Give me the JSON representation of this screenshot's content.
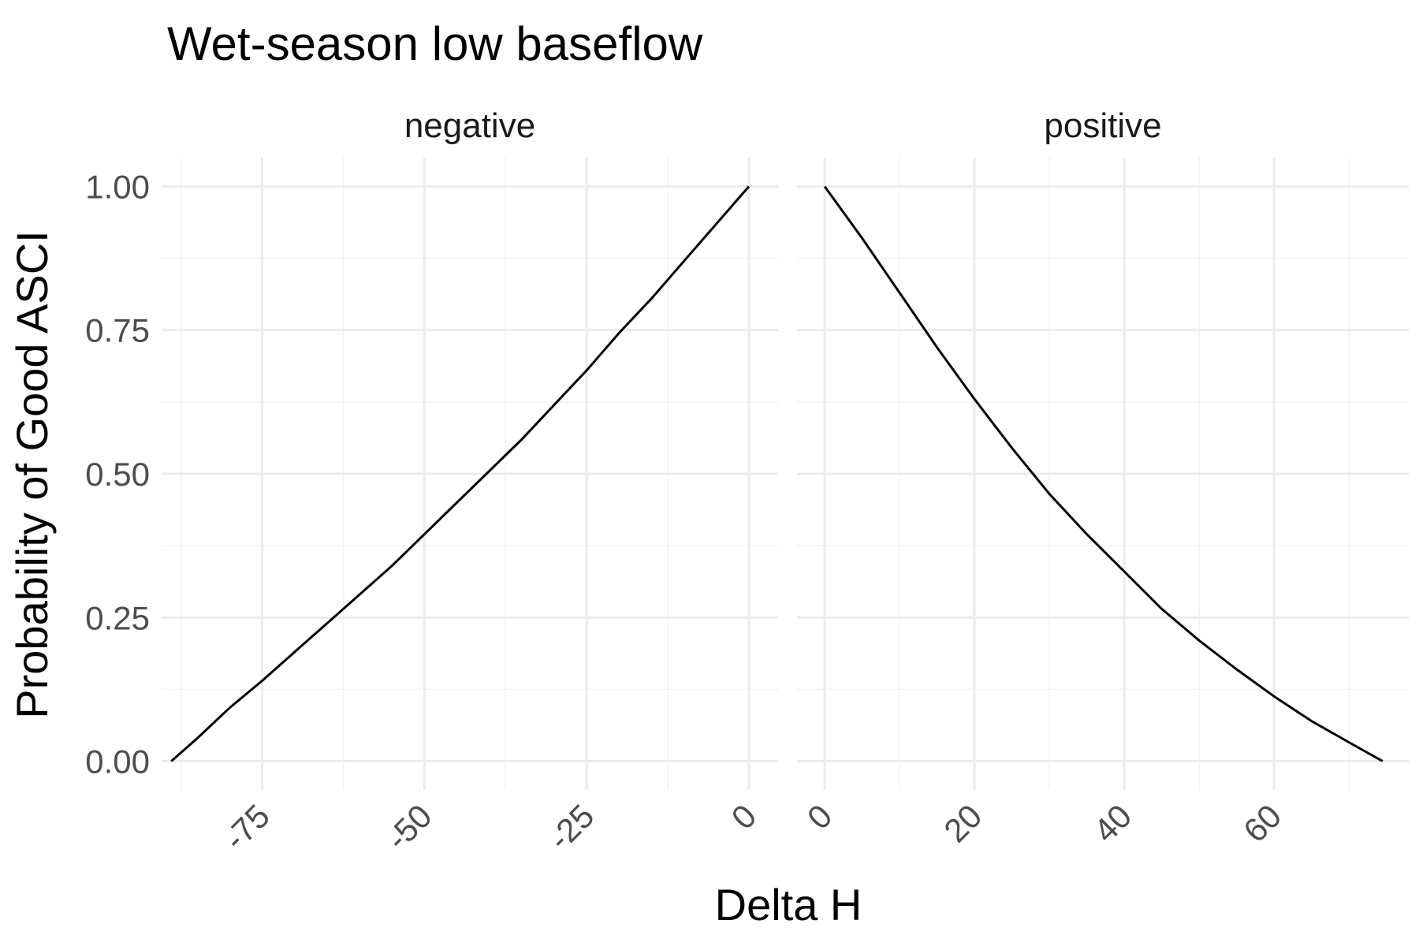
{
  "chart_data": {
    "type": "line",
    "title": "Wet-season low baseflow",
    "xlabel": "Delta H",
    "ylabel": "Probability of Good ASCI",
    "ylim": [
      0,
      1
    ],
    "y_ticks": [
      "0.00",
      "0.25",
      "0.50",
      "0.75",
      "1.00"
    ],
    "y_tick_values": [
      0,
      0.25,
      0.5,
      0.75,
      1.0
    ],
    "grid": true,
    "facets": [
      {
        "label": "negative",
        "xlim": [
          -90.5,
          4.5
        ],
        "x_ticks": [
          "-75",
          "-50",
          "-25",
          "0"
        ],
        "x_tick_values": [
          -75,
          -50,
          -25,
          0
        ],
        "x": [
          -89.0,
          -85.0,
          -80.0,
          -75.0,
          -70.0,
          -65.0,
          -60.0,
          -55.0,
          -50.0,
          -45.0,
          -40.0,
          -35.0,
          -30.0,
          -25.0,
          -20.0,
          -15.0,
          -10.0,
          -5.0,
          0.0
        ],
        "y": [
          0.0,
          0.04,
          0.093,
          0.14,
          0.19,
          0.24,
          0.29,
          0.34,
          0.395,
          0.45,
          0.505,
          0.56,
          0.62,
          0.68,
          0.745,
          0.805,
          0.87,
          0.935,
          1.0
        ]
      },
      {
        "label": "positive",
        "xlim": [
          -3.7,
          78.0
        ],
        "x_ticks": [
          "0",
          "20",
          "40",
          "60"
        ],
        "x_tick_values": [
          0,
          20,
          40,
          60
        ],
        "x": [
          0.0,
          5.0,
          10.0,
          15.0,
          20.0,
          25.0,
          30.0,
          35.0,
          40.0,
          45.0,
          50.0,
          55.0,
          60.0,
          65.0,
          70.0,
          74.5
        ],
        "y": [
          1.0,
          0.91,
          0.815,
          0.72,
          0.63,
          0.545,
          0.465,
          0.395,
          0.33,
          0.265,
          0.21,
          0.16,
          0.113,
          0.07,
          0.033,
          0.0
        ]
      }
    ]
  }
}
